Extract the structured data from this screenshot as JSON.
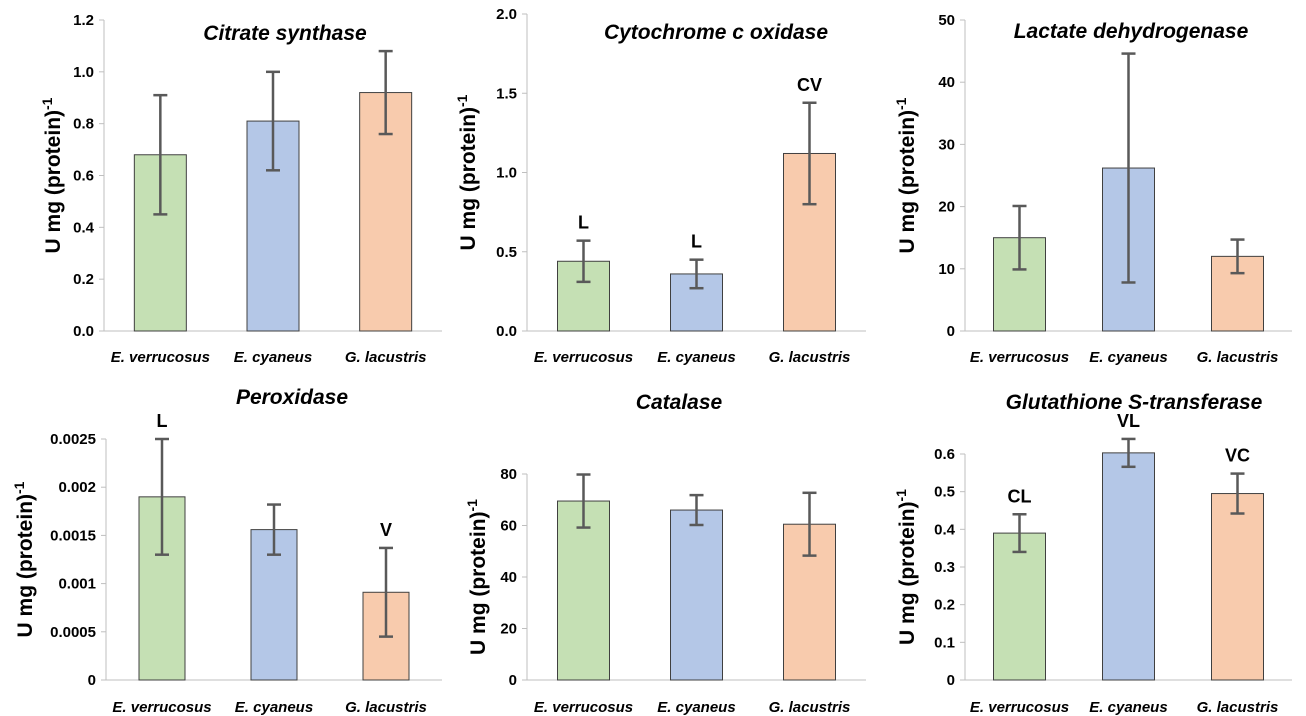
{
  "colors": {
    "E. verrucosus": "#c5e0b4",
    "E. cyaneus": "#b4c7e7",
    "G. lacustris": "#f8cbad"
  },
  "chart_data": [
    {
      "type": "bar",
      "title": "Citrate synthase",
      "ylabel_main": "U mg (protein)",
      "ylabel_sup": "-1",
      "categories": [
        "E. verrucosus",
        "E. cyaneus",
        "G. lacustris"
      ],
      "values": [
        0.68,
        0.81,
        0.92
      ],
      "errors": [
        0.23,
        0.19,
        0.16
      ],
      "labels": [
        "",
        "",
        ""
      ],
      "ylim": [
        0,
        1.2
      ],
      "ticks": [
        "0.0",
        "0.2",
        "0.4",
        "0.6",
        "0.8",
        "1.0",
        "1.2"
      ],
      "grid": false
    },
    {
      "type": "bar",
      "title": "Cytochrome c oxidase",
      "ylabel_main": "U mg (protein)",
      "ylabel_sup": "-1",
      "categories": [
        "E. verrucosus",
        "E. cyaneus",
        "G. lacustris"
      ],
      "values": [
        0.44,
        0.36,
        1.12
      ],
      "errors": [
        0.13,
        0.09,
        0.32
      ],
      "labels": [
        "L",
        "L",
        "CV"
      ],
      "ylim": [
        0,
        2.0
      ],
      "ticks": [
        "0.0",
        "0.5",
        "1.0",
        "1.5",
        "2.0"
      ],
      "grid": false
    },
    {
      "type": "bar",
      "title": "Lactate dehydrogenase",
      "ylabel_main": "U mg (protein)",
      "ylabel_sup": "-1",
      "categories": [
        "E. verrucosus",
        "E. cyaneus",
        "G. lacustris"
      ],
      "values": [
        15.0,
        26.2,
        12.0
      ],
      "errors": [
        5.1,
        18.4,
        2.7
      ],
      "labels": [
        "",
        "",
        ""
      ],
      "ylim": [
        0,
        50
      ],
      "ticks": [
        "0",
        "10",
        "20",
        "30",
        "40",
        "50"
      ],
      "grid": false
    },
    {
      "type": "bar",
      "title": "Peroxidase",
      "ylabel_main": "U mg (protein)",
      "ylabel_sup": "-1",
      "categories": [
        "E. verrucosus",
        "E. cyaneus",
        "G. lacustris"
      ],
      "values": [
        0.0019,
        0.00156,
        0.00091
      ],
      "errors": [
        0.0006,
        0.00026,
        0.00046
      ],
      "labels": [
        "L",
        "",
        "V"
      ],
      "ylim": [
        0,
        0.0025
      ],
      "ticks": [
        "0",
        "0.0005",
        "0.001",
        "0.0015",
        "0.002",
        "0.0025"
      ],
      "grid": false
    },
    {
      "type": "bar",
      "title": "Catalase",
      "ylabel_main": "U mg (protein)",
      "ylabel_sup": "-1",
      "categories": [
        "E. verrucosus",
        "E. cyaneus",
        "G. lacustris"
      ],
      "values": [
        69.5,
        66.0,
        60.5
      ],
      "errors": [
        10.3,
        5.8,
        12.2
      ],
      "labels": [
        "",
        "",
        ""
      ],
      "ylim": [
        0,
        80
      ],
      "ticks": [
        "0",
        "20",
        "40",
        "60",
        "80"
      ],
      "grid": false
    },
    {
      "type": "bar",
      "title": "Glutathione S-transferase",
      "ylabel_main": "U mg (protein)",
      "ylabel_sup": "-1",
      "categories": [
        "E. verrucosus",
        "E. cyaneus",
        "G. lacustris"
      ],
      "values": [
        0.39,
        0.603,
        0.495
      ],
      "errors": [
        0.05,
        0.037,
        0.053
      ],
      "labels": [
        "CL",
        "VL",
        "VC"
      ],
      "ylim": [
        0,
        0.6
      ],
      "ticks": [
        "0",
        "0.1",
        "0.2",
        "0.3",
        "0.4",
        "0.5",
        "0.6"
      ],
      "grid": false
    }
  ]
}
